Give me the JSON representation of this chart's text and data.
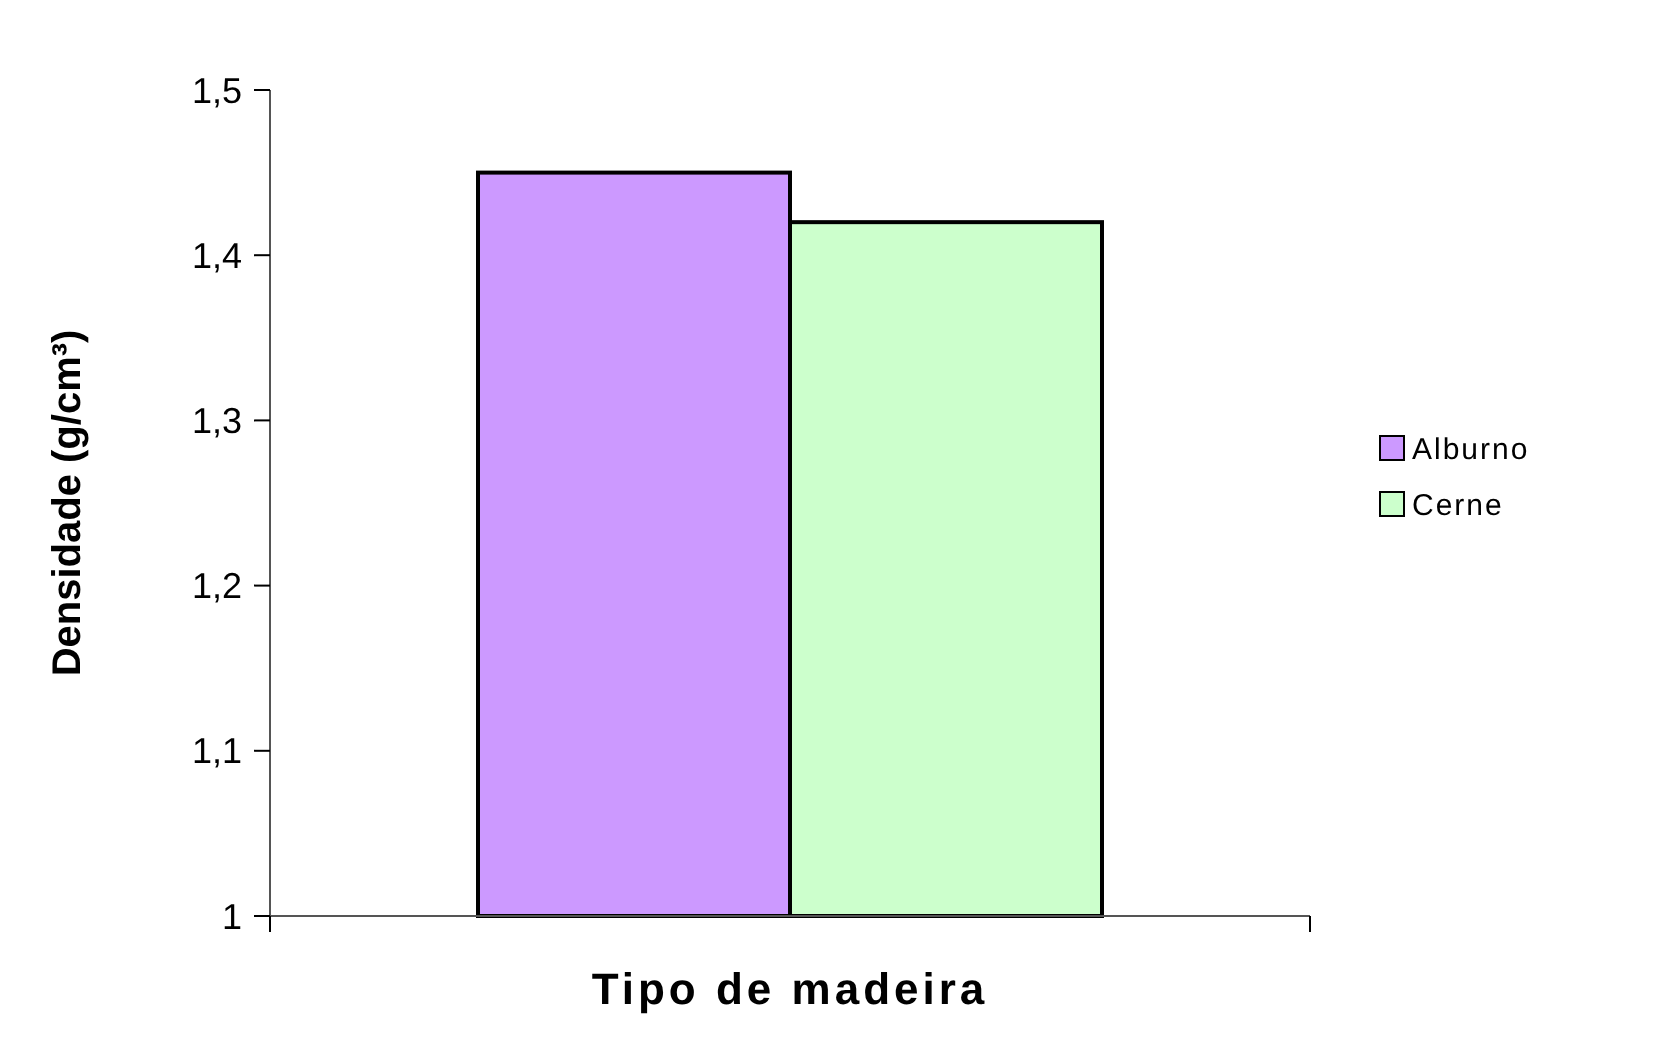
{
  "chart_data": {
    "type": "bar",
    "xlabel": "Tipo de madeira",
    "ylabel": "Densidade (g/cm³)",
    "categories": [
      null
    ],
    "series": [
      {
        "name": "Alburno",
        "color": "#cc99ff",
        "values": [
          1.45
        ]
      },
      {
        "name": "Cerne",
        "color": "#ccffcc",
        "values": [
          1.42
        ]
      }
    ],
    "ylim": [
      1,
      1.5
    ],
    "yticks": [
      1,
      {
        "value": 1.1,
        "label": "1,1"
      },
      {
        "value": 1.2,
        "label": "1,2"
      },
      {
        "value": 1.3,
        "label": "1,3"
      },
      {
        "value": 1.4,
        "label": "1,4"
      },
      {
        "value": 1.5,
        "label": "1,5"
      }
    ],
    "grid": false,
    "legend": "right"
  }
}
